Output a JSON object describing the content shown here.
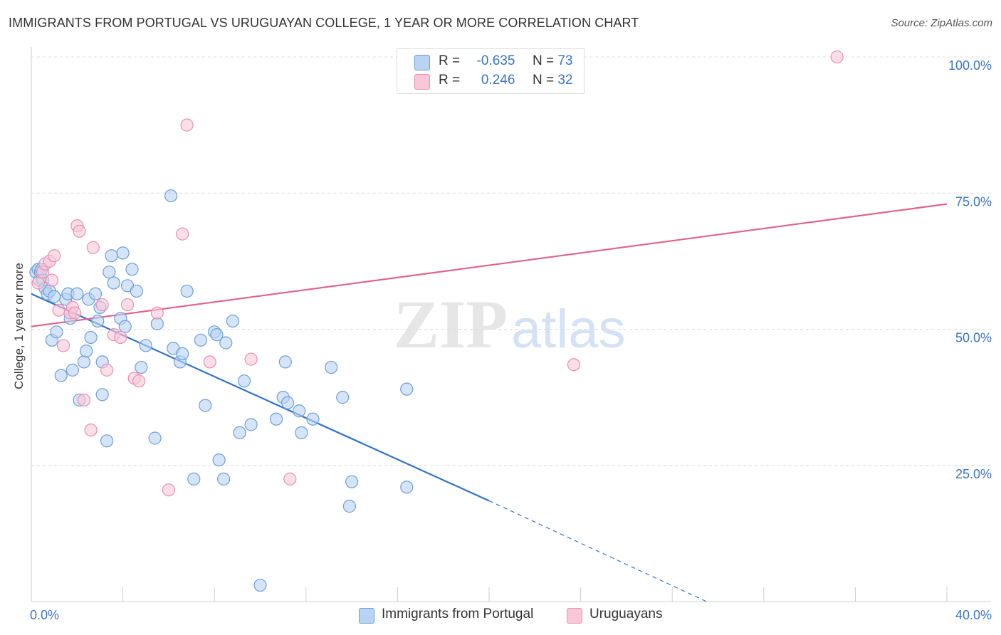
{
  "header": {
    "title": "IMMIGRANTS FROM PORTUGAL VS URUGUAYAN COLLEGE, 1 YEAR OR MORE CORRELATION CHART",
    "source": "Source: ZipAtlas.com"
  },
  "watermark": {
    "zip": "ZIP",
    "atlas": "atlas"
  },
  "legend": {
    "rows": [
      {
        "r_label": "R =",
        "r_value": "-0.635",
        "n_label": "N =",
        "n_value": "73"
      },
      {
        "r_label": "R =",
        "r_value": "0.246",
        "n_label": "N =",
        "n_value": "32"
      }
    ]
  },
  "colors": {
    "portugal_fill": "#b9d3f2",
    "portugal_stroke": "#6d9edc",
    "portugal_line": "#2f72cc",
    "uruguay_fill": "#f8c8d8",
    "uruguay_stroke": "#ea8fae",
    "uruguay_line": "#e0608e",
    "tick_text": "#3a73c9",
    "grid": "#dcdcdc"
  },
  "chart_data": {
    "type": "scatter",
    "title": "IMMIGRANTS FROM PORTUGAL VS URUGUAYAN COLLEGE, 1 YEAR OR MORE CORRELATION CHART",
    "ylabel": "College, 1 year or more",
    "xlim": [
      0,
      40
    ],
    "ylim": [
      0,
      100
    ],
    "x_tick_labels": [
      "0.0%",
      "40.0%"
    ],
    "y_ticks": [
      25,
      50,
      75,
      100
    ],
    "y_tick_labels": [
      "25.0%",
      "50.0%",
      "75.0%",
      "100.0%"
    ],
    "grid": true,
    "legend_position": "top-center",
    "series": [
      {
        "name": "Immigrants from Portugal",
        "r": -0.635,
        "n": 73,
        "trend": {
          "x0": 0,
          "y0": 56.5,
          "x1": 20,
          "y1": 18.5,
          "dashed_to_x": 29.5,
          "dashed_to_y": 0
        },
        "points": [
          [
            0.2,
            60.5
          ],
          [
            0.3,
            61.0
          ],
          [
            0.35,
            59.0
          ],
          [
            0.4,
            60.5
          ],
          [
            0.45,
            61.0
          ],
          [
            0.5,
            59.0
          ],
          [
            0.6,
            57.5
          ],
          [
            0.7,
            56.5
          ],
          [
            0.8,
            57.0
          ],
          [
            0.9,
            48.0
          ],
          [
            1.1,
            49.5
          ],
          [
            1.3,
            41.5
          ],
          [
            1.5,
            55.5
          ],
          [
            1.6,
            56.5
          ],
          [
            1.7,
            52.0
          ],
          [
            1.8,
            42.5
          ],
          [
            2.1,
            37.0
          ],
          [
            2.3,
            44.0
          ],
          [
            2.4,
            46.0
          ],
          [
            2.5,
            55.5
          ],
          [
            2.6,
            48.5
          ],
          [
            2.8,
            56.5
          ],
          [
            2.9,
            51.5
          ],
          [
            3.0,
            54.0
          ],
          [
            3.1,
            44.0
          ],
          [
            3.1,
            38.0
          ],
          [
            3.3,
            29.5
          ],
          [
            3.4,
            60.5
          ],
          [
            3.5,
            63.5
          ],
          [
            3.6,
            58.5
          ],
          [
            3.9,
            52.0
          ],
          [
            4.0,
            64.0
          ],
          [
            4.1,
            50.5
          ],
          [
            4.2,
            58.0
          ],
          [
            4.4,
            61.0
          ],
          [
            4.6,
            57.0
          ],
          [
            4.8,
            43.0
          ],
          [
            5.0,
            47.0
          ],
          [
            5.4,
            30.0
          ],
          [
            5.5,
            51.0
          ],
          [
            6.1,
            74.5
          ],
          [
            6.2,
            46.5
          ],
          [
            6.5,
            44.0
          ],
          [
            6.6,
            45.5
          ],
          [
            6.8,
            57.0
          ],
          [
            7.1,
            22.5
          ],
          [
            7.4,
            48.0
          ],
          [
            7.6,
            36.0
          ],
          [
            8.0,
            49.5
          ],
          [
            8.1,
            49.0
          ],
          [
            8.2,
            26.0
          ],
          [
            8.4,
            22.5
          ],
          [
            8.5,
            47.5
          ],
          [
            8.8,
            51.5
          ],
          [
            9.1,
            31.0
          ],
          [
            9.3,
            40.5
          ],
          [
            9.6,
            32.5
          ],
          [
            10.0,
            3.0
          ],
          [
            10.7,
            33.5
          ],
          [
            11.0,
            37.5
          ],
          [
            11.1,
            44.0
          ],
          [
            11.2,
            36.5
          ],
          [
            11.7,
            35.0
          ],
          [
            11.8,
            31.0
          ],
          [
            12.3,
            33.5
          ],
          [
            13.1,
            43.0
          ],
          [
            13.6,
            37.5
          ],
          [
            13.9,
            17.5
          ],
          [
            14.0,
            22.0
          ],
          [
            16.4,
            39.0
          ],
          [
            16.4,
            21.0
          ],
          [
            2.0,
            56.5
          ],
          [
            1.0,
            56.0
          ]
        ]
      },
      {
        "name": "Uruguayans",
        "r": 0.246,
        "n": 32,
        "trend": {
          "x0": 0,
          "y0": 50.5,
          "x1": 40,
          "y1": 73.0
        },
        "points": [
          [
            0.3,
            58.5
          ],
          [
            0.5,
            60.5
          ],
          [
            0.6,
            62.0
          ],
          [
            0.8,
            62.5
          ],
          [
            0.9,
            59.0
          ],
          [
            1.0,
            63.5
          ],
          [
            1.2,
            53.5
          ],
          [
            1.4,
            47.0
          ],
          [
            1.7,
            53.0
          ],
          [
            1.8,
            54.0
          ],
          [
            1.9,
            53.0
          ],
          [
            2.0,
            69.0
          ],
          [
            2.1,
            68.0
          ],
          [
            2.3,
            37.0
          ],
          [
            2.6,
            31.5
          ],
          [
            2.7,
            65.0
          ],
          [
            3.1,
            54.5
          ],
          [
            3.3,
            42.5
          ],
          [
            3.6,
            49.0
          ],
          [
            3.9,
            48.5
          ],
          [
            4.2,
            54.5
          ],
          [
            4.5,
            41.0
          ],
          [
            4.7,
            40.5
          ],
          [
            5.5,
            53.0
          ],
          [
            6.0,
            20.5
          ],
          [
            6.6,
            67.5
          ],
          [
            6.8,
            87.5
          ],
          [
            7.8,
            44.0
          ],
          [
            9.6,
            44.5
          ],
          [
            11.3,
            22.5
          ],
          [
            23.7,
            43.5
          ],
          [
            35.2,
            100.0
          ]
        ]
      }
    ]
  }
}
